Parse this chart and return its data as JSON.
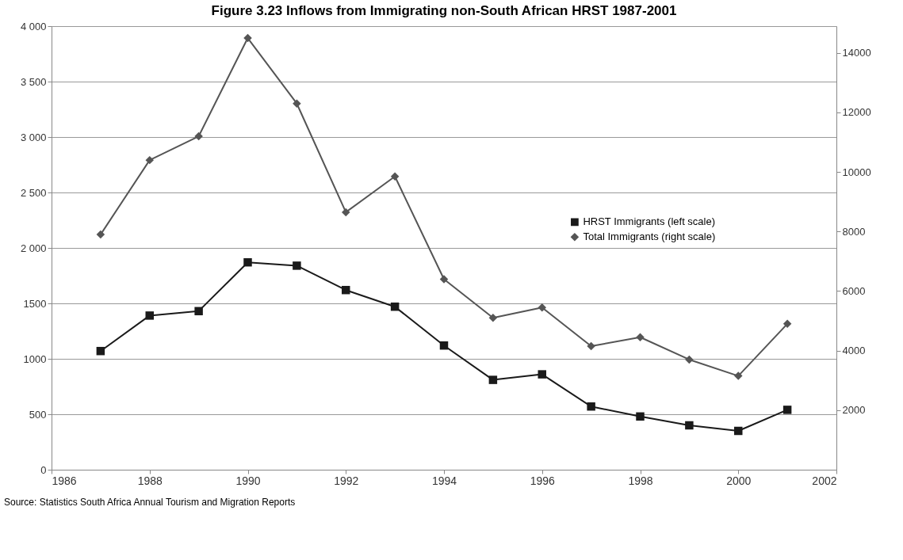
{
  "chart_data": {
    "type": "line",
    "title": "Figure 3.23 Inflows from Immigrating non-South African HRST 1987-2001",
    "x": [
      1987,
      1988,
      1989,
      1990,
      1991,
      1992,
      1993,
      1994,
      1995,
      1996,
      1997,
      1998,
      1999,
      2000,
      2001
    ],
    "series": [
      {
        "name": "HRST Immigrants (left scale)",
        "color": "#1a1a1a",
        "marker": "square",
        "values": [
          1070,
          1390,
          1430,
          1870,
          1840,
          1620,
          1470,
          1120,
          810,
          860,
          570,
          480,
          400,
          350,
          540
        ]
      },
      {
        "name": "Total Immigrants (right scale)",
        "color": "#555555",
        "marker": "diamond",
        "axis": "y2",
        "values": [
          7900,
          10400,
          11200,
          14500,
          12300,
          8650,
          9850,
          6400,
          5100,
          5450,
          4150,
          4450,
          3700,
          3150,
          4900
        ]
      }
    ],
    "xlim": [
      1986,
      2002
    ],
    "xticks": [
      1986,
      1988,
      1990,
      1992,
      1994,
      1996,
      1998,
      2000,
      2002
    ],
    "ylim": [
      0,
      4000
    ],
    "yticks": [
      0,
      500,
      1000,
      1500,
      {
        "value": 2000,
        "label": "2 000"
      },
      {
        "value": 2500,
        "label": "2 500"
      },
      {
        "value": 3000,
        "label": "3 000"
      },
      {
        "value": 3500,
        "label": "3 500"
      },
      {
        "value": 4000,
        "label": "4 000"
      }
    ],
    "y2lim": [
      0,
      14900
    ],
    "y2ticks": [
      2000,
      4000,
      6000,
      8000,
      10000,
      12000,
      14000
    ],
    "grid": "y",
    "legend": "right",
    "line_style": "solid",
    "annotations": [
      "Source: Statistics South Africa Annual Tourism and Migration Reports"
    ]
  }
}
